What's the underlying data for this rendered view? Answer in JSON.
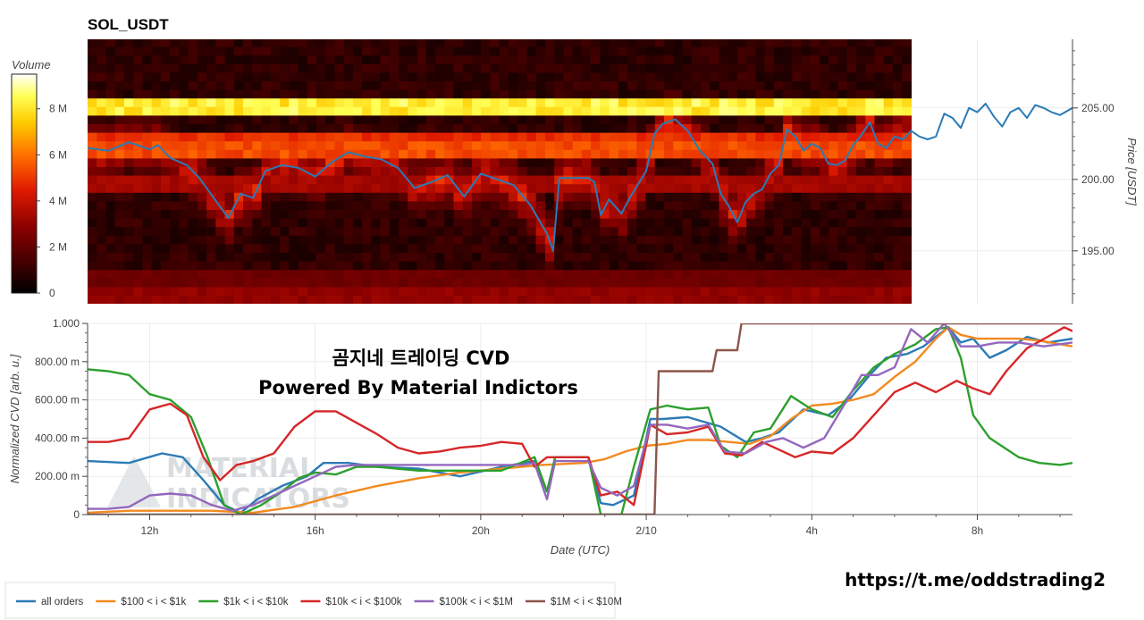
{
  "chart_data": [
    {
      "type": "heatmap",
      "title": "SOL_USDT",
      "colorbar": {
        "label": "Volume",
        "ticks": [
          "0",
          "2 M",
          "4 M",
          "6 M",
          "8 M"
        ],
        "tick_values": [
          0,
          2,
          4,
          6,
          8
        ],
        "range": [
          0,
          9.5
        ]
      },
      "ylabel": "Price [USDT]",
      "yticks": [
        "195.00",
        "200.00",
        "205.00"
      ],
      "ytick_values": [
        195,
        200,
        205
      ],
      "ylim": [
        191.3,
        209.8
      ],
      "xlim": [
        10.5,
        34.3
      ],
      "heatmap_x_range": [
        10.5,
        30.4
      ],
      "heatmap_bands": [
        {
          "price": 205.0,
          "volume": 8.8
        },
        {
          "price": 203.0,
          "volume": 5.2
        },
        {
          "price": 202.0,
          "volume": 5.8
        },
        {
          "price": 199.5,
          "volume": 3.6
        },
        {
          "price": 193.0,
          "volume": 2.4
        },
        {
          "price": 192.0,
          "volume": 3.2
        }
      ],
      "series": [
        {
          "name": "price",
          "color": "#2b7bb6",
          "x": [
            10.5,
            11.0,
            11.5,
            12.0,
            12.2,
            12.5,
            12.9,
            13.2,
            13.6,
            13.9,
            14.2,
            14.5,
            14.8,
            15.2,
            15.6,
            16.0,
            16.4,
            16.8,
            17.2,
            17.6,
            18.0,
            18.4,
            18.8,
            19.2,
            19.6,
            20.0,
            20.4,
            20.8,
            21.2,
            21.6,
            21.75,
            21.9,
            22.6,
            22.75,
            22.9,
            23.1,
            23.4,
            23.6,
            24.0,
            24.2,
            24.4,
            24.7,
            25.0,
            25.3,
            25.6,
            25.8,
            26.0,
            26.2,
            26.4,
            26.6,
            26.8,
            27.0,
            27.2,
            27.4,
            27.6,
            27.8,
            28.0,
            28.2,
            28.4,
            28.6,
            28.8,
            29.0,
            29.2,
            29.4,
            29.6,
            29.8,
            30.0,
            30.2,
            30.4,
            30.6,
            30.8,
            31.0,
            31.2,
            31.4,
            31.6,
            31.8,
            32.0,
            32.2,
            32.4,
            32.6,
            32.8,
            33.0,
            33.2,
            33.4,
            33.6,
            33.8,
            34.0,
            34.3
          ],
          "y": [
            202.2,
            202.0,
            202.6,
            202.1,
            202.4,
            201.5,
            201.0,
            200.1,
            198.5,
            197.3,
            199.0,
            198.7,
            200.6,
            201.0,
            200.8,
            200.2,
            201.2,
            201.9,
            201.6,
            201.4,
            200.8,
            199.4,
            199.8,
            200.3,
            198.8,
            200.4,
            200.0,
            199.6,
            198.2,
            196.2,
            195.0,
            200.1,
            200.1,
            199.8,
            197.5,
            198.6,
            197.6,
            198.7,
            200.6,
            203.2,
            203.9,
            204.2,
            203.4,
            202.0,
            201.1,
            199.0,
            198.1,
            197.0,
            198.4,
            199.0,
            199.3,
            200.4,
            201.0,
            203.5,
            203.0,
            202.0,
            202.5,
            202.2,
            201.1,
            201.0,
            201.3,
            202.4,
            203.1,
            204.0,
            202.5,
            202.2,
            203.0,
            202.8,
            203.4,
            203.0,
            202.8,
            203.0,
            204.6,
            204.3,
            203.6,
            205.0,
            204.7,
            205.3,
            204.4,
            203.7,
            204.7,
            205.0,
            204.3,
            205.2,
            205.0,
            204.7,
            204.5,
            205.0
          ]
        }
      ]
    },
    {
      "type": "line",
      "xlabel": "Date (UTC)",
      "ylabel": "Normalized CVD [arb. u.]",
      "xticks": [
        "12h",
        "16h",
        "20h",
        "2/10",
        "4h",
        "8h"
      ],
      "xtick_values": [
        12,
        16,
        20,
        24,
        28,
        32
      ],
      "yticks": [
        "0",
        "200.00 m",
        "400.00 m",
        "600.00 m",
        "800.00 m",
        "1.000"
      ],
      "ytick_values": [
        0,
        0.2,
        0.4,
        0.6,
        0.8,
        1.0
      ],
      "xlim": [
        10.5,
        34.3
      ],
      "ylim": [
        0,
        1.0
      ],
      "grid": true,
      "legend_position": "bottom-left",
      "annotations": [
        "곰지네 트레이딩 CVD",
        "Powered By Material Indictors"
      ],
      "series": [
        {
          "name": "all orders",
          "color": "#2b7bb6",
          "x": [
            10.5,
            11.5,
            12.3,
            12.8,
            13.3,
            13.8,
            14.2,
            14.6,
            15.2,
            15.8,
            16.2,
            16.8,
            17.5,
            18.5,
            19.5,
            20.5,
            21.3,
            21.6,
            21.8,
            22.6,
            22.9,
            23.2,
            23.7,
            24.1,
            24.4,
            25.0,
            25.8,
            26.4,
            26.8,
            27.2,
            27.8,
            28.4,
            28.9,
            29.4,
            29.8,
            30.3,
            30.7,
            31.0,
            31.3,
            31.6,
            31.9,
            32.3,
            32.7,
            33.2,
            33.7,
            34.3
          ],
          "y": [
            0.28,
            0.27,
            0.32,
            0.3,
            0.18,
            0.05,
            0.01,
            0.08,
            0.15,
            0.2,
            0.27,
            0.27,
            0.25,
            0.24,
            0.2,
            0.25,
            0.28,
            0.12,
            0.3,
            0.3,
            0.06,
            0.05,
            0.1,
            0.5,
            0.5,
            0.51,
            0.46,
            0.38,
            0.4,
            0.43,
            0.55,
            0.52,
            0.6,
            0.73,
            0.82,
            0.84,
            0.88,
            0.93,
            0.98,
            0.9,
            0.92,
            0.82,
            0.86,
            0.93,
            0.9,
            0.92
          ]
        },
        {
          "name": "$100 < i < $1k",
          "color": "#f28a20",
          "x": [
            10.5,
            11.5,
            12.5,
            13.5,
            14.5,
            15.5,
            16.5,
            17.5,
            18.5,
            19.5,
            20.5,
            21.5,
            22.5,
            23.0,
            23.5,
            24.0,
            24.5,
            25.0,
            25.5,
            26.0,
            26.5,
            27.0,
            27.5,
            28.0,
            28.5,
            29.0,
            29.5,
            30.0,
            30.5,
            31.0,
            31.3,
            31.6,
            32.0,
            32.5,
            33.0,
            33.5,
            34.3
          ],
          "y": [
            0.01,
            0.02,
            0.02,
            0.02,
            0.01,
            0.04,
            0.1,
            0.15,
            0.19,
            0.22,
            0.24,
            0.26,
            0.27,
            0.29,
            0.33,
            0.36,
            0.37,
            0.39,
            0.39,
            0.38,
            0.37,
            0.41,
            0.5,
            0.57,
            0.58,
            0.6,
            0.63,
            0.72,
            0.8,
            0.92,
            0.98,
            0.94,
            0.92,
            0.92,
            0.92,
            0.91,
            0.88
          ]
        },
        {
          "name": "$1k < i < $10k",
          "color": "#2ca02c",
          "x": [
            10.5,
            11.0,
            11.5,
            12.0,
            12.5,
            13.0,
            13.4,
            13.8,
            14.2,
            14.7,
            15.2,
            15.6,
            16.0,
            16.5,
            17.0,
            17.5,
            18.5,
            19.5,
            20.5,
            21.3,
            21.6,
            21.8,
            22.6,
            22.9,
            23.4,
            23.7,
            24.1,
            24.5,
            25.0,
            25.5,
            25.8,
            26.2,
            26.6,
            27.0,
            27.5,
            28.0,
            28.5,
            29.0,
            29.5,
            30.0,
            30.5,
            31.0,
            31.3,
            31.6,
            31.9,
            32.3,
            33.0,
            33.5,
            34.0,
            34.3
          ],
          "y": [
            0.76,
            0.75,
            0.73,
            0.63,
            0.6,
            0.51,
            0.3,
            0.05,
            0.0,
            0.05,
            0.12,
            0.19,
            0.22,
            0.21,
            0.25,
            0.25,
            0.23,
            0.23,
            0.23,
            0.3,
            0.12,
            0.3,
            0.3,
            0.0,
            0.0,
            0.25,
            0.55,
            0.57,
            0.55,
            0.56,
            0.36,
            0.3,
            0.43,
            0.45,
            0.62,
            0.55,
            0.51,
            0.65,
            0.77,
            0.84,
            0.89,
            0.97,
            0.98,
            0.82,
            0.52,
            0.4,
            0.3,
            0.27,
            0.26,
            0.27
          ]
        },
        {
          "name": "$10k < i < $100k",
          "color": "#d62728",
          "x": [
            10.5,
            11.0,
            11.5,
            12.0,
            12.5,
            12.9,
            13.3,
            13.7,
            14.1,
            14.5,
            15.0,
            15.5,
            16.0,
            16.5,
            17.0,
            17.5,
            18.0,
            18.5,
            19.0,
            19.5,
            20.0,
            20.5,
            21.0,
            21.3,
            21.6,
            21.8,
            22.6,
            22.9,
            23.3,
            23.7,
            24.1,
            24.5,
            25.0,
            25.5,
            25.9,
            26.3,
            26.8,
            27.2,
            27.6,
            28.0,
            28.5,
            29.0,
            29.5,
            30.0,
            30.5,
            31.0,
            31.5,
            31.9,
            32.3,
            32.7,
            33.2,
            33.7,
            34.1,
            34.3
          ],
          "y": [
            0.38,
            0.38,
            0.4,
            0.55,
            0.58,
            0.52,
            0.3,
            0.18,
            0.26,
            0.28,
            0.32,
            0.46,
            0.54,
            0.54,
            0.48,
            0.42,
            0.35,
            0.32,
            0.33,
            0.35,
            0.36,
            0.38,
            0.37,
            0.25,
            0.3,
            0.3,
            0.3,
            0.1,
            0.12,
            0.05,
            0.47,
            0.42,
            0.43,
            0.46,
            0.32,
            0.31,
            0.38,
            0.34,
            0.3,
            0.33,
            0.32,
            0.4,
            0.52,
            0.64,
            0.69,
            0.64,
            0.7,
            0.66,
            0.63,
            0.75,
            0.87,
            0.93,
            0.98,
            0.96
          ]
        },
        {
          "name": "$100k < i < $1M",
          "color": "#9467bd",
          "x": [
            10.5,
            11.0,
            11.5,
            12.0,
            12.5,
            13.0,
            13.5,
            14.0,
            14.5,
            15.0,
            15.5,
            16.0,
            16.5,
            17.0,
            18.0,
            19.0,
            20.0,
            21.0,
            21.3,
            21.6,
            21.8,
            22.6,
            22.9,
            23.3,
            23.7,
            24.1,
            24.5,
            25.0,
            25.5,
            25.9,
            26.4,
            26.9,
            27.3,
            27.8,
            28.3,
            28.8,
            29.2,
            29.6,
            30.0,
            30.4,
            30.8,
            31.2,
            31.6,
            32.0,
            32.5,
            33.0,
            33.6,
            34.3
          ],
          "y": [
            0.03,
            0.03,
            0.04,
            0.1,
            0.11,
            0.1,
            0.05,
            0.02,
            0.05,
            0.1,
            0.15,
            0.2,
            0.25,
            0.26,
            0.26,
            0.26,
            0.26,
            0.26,
            0.27,
            0.08,
            0.28,
            0.28,
            0.14,
            0.1,
            0.15,
            0.47,
            0.47,
            0.45,
            0.47,
            0.33,
            0.32,
            0.38,
            0.4,
            0.35,
            0.4,
            0.58,
            0.73,
            0.73,
            0.77,
            0.97,
            0.9,
            1.0,
            0.88,
            0.88,
            0.9,
            0.9,
            0.88,
            0.9
          ]
        },
        {
          "name": "$1M < i < $10M",
          "color": "#8c564b",
          "x": [
            10.5,
            24.2,
            24.3,
            25.6,
            25.7,
            26.2,
            26.3,
            34.3
          ],
          "y": [
            0,
            0,
            0.75,
            0.75,
            0.86,
            0.86,
            1.0,
            1.0
          ]
        }
      ]
    }
  ],
  "footer": {
    "url": "https://t.me/oddstrading2"
  },
  "watermark": {
    "line1": "MATERIAL",
    "line2": "INDICATORS"
  }
}
